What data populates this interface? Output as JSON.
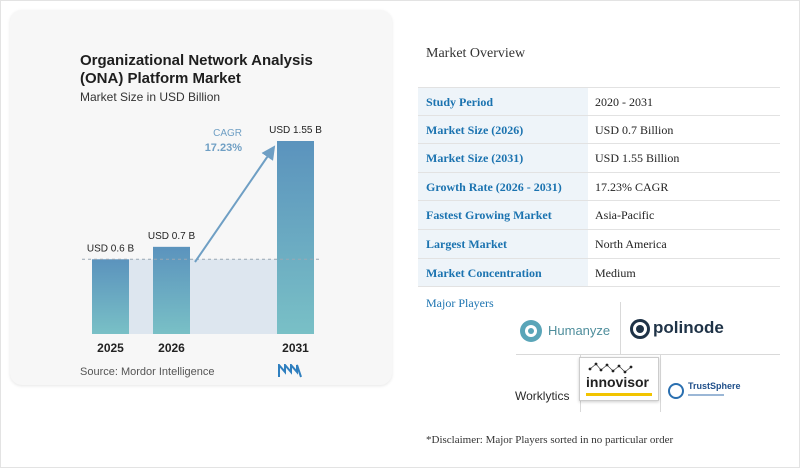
{
  "chart_data": {
    "type": "bar",
    "title": "Organizational Network Analysis (ONA) Platform Market",
    "subtitle": "Market Size in USD Billion",
    "categories": [
      "2025",
      "2026",
      "2031"
    ],
    "values": [
      0.6,
      0.7,
      1.55
    ],
    "value_labels": [
      "USD 0.6 B",
      "USD 0.7 B",
      "USD 1.55 B"
    ],
    "cagr_label": "CAGR",
    "cagr_value": "17.23%",
    "source": "Source: Mordor Intelligence",
    "colors": {
      "bar_top": "#5b93bd",
      "bar_bottom": "#79c0c6",
      "shade": "#dde6ef",
      "arrow": "#6f9fc4",
      "cagr_text": "#6f9fc4"
    }
  },
  "overview": {
    "title": "Market Overview",
    "rows": [
      {
        "label": "Study Period",
        "value": "2020 - 2031"
      },
      {
        "label": "Market Size (2026)",
        "value": "USD 0.7 Billion"
      },
      {
        "label": "Market Size (2031)",
        "value": "USD 1.55 Billion"
      },
      {
        "label": "Growth Rate (2026 - 2031)",
        "value": "17.23% CAGR"
      },
      {
        "label": "Fastest Growing Market",
        "value": "Asia-Pacific"
      },
      {
        "label": "Largest Market",
        "value": "North America"
      },
      {
        "label": "Market Concentration",
        "value": "Medium"
      }
    ]
  },
  "players": {
    "title": "Major Players",
    "logos": {
      "humanyze": "Humanyze",
      "polinode": "polinode",
      "worklytics": "Worklytics",
      "innovisor": "innovisor",
      "trustsphere": "TrustSphere"
    }
  },
  "disclaimer": "*Disclaimer: Major Players sorted in no particular order"
}
